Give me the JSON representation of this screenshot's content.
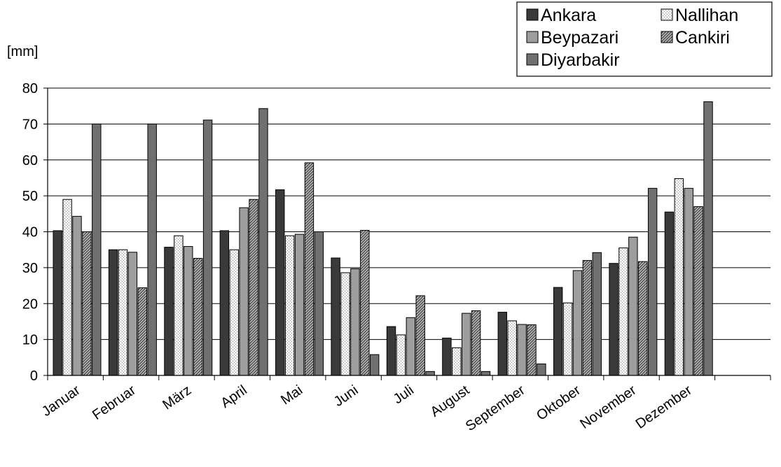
{
  "chart_data": {
    "type": "bar",
    "ylabel": "[mm]",
    "ylim": [
      0,
      80
    ],
    "yticks": [
      0,
      10,
      20,
      30,
      40,
      50,
      60,
      70,
      80
    ],
    "grid": "horizontal",
    "legend_position": "top-right",
    "categories": [
      "Januar",
      "Februar",
      "März",
      "April",
      "Mai",
      "Juni",
      "Juli",
      "August",
      "September",
      "Oktober",
      "November",
      "Dezember"
    ],
    "series": [
      {
        "name": "Ankara",
        "color": "#3a3a3a",
        "pattern": "solid-dark",
        "values": [
          40.3,
          35.0,
          35.7,
          40.3,
          51.7,
          32.7,
          13.6,
          10.4,
          17.6,
          24.5,
          31.2,
          45.5
        ]
      },
      {
        "name": "Nallihan",
        "color": "#e4e4e4",
        "pattern": "dotted-light",
        "values": [
          49.0,
          35.0,
          38.9,
          35.0,
          38.9,
          28.6,
          11.3,
          7.7,
          15.2,
          20.2,
          35.5,
          54.8
        ]
      },
      {
        "name": "Beypazari",
        "color": "#9e9e9e",
        "pattern": "solid-gray",
        "values": [
          44.3,
          34.3,
          35.9,
          46.7,
          39.3,
          29.7,
          16.1,
          17.3,
          14.2,
          29.2,
          38.5,
          52.1
        ]
      },
      {
        "name": "Cankiri",
        "color": "#8a8a8a",
        "pattern": "hatched",
        "values": [
          40.0,
          24.4,
          32.6,
          49.0,
          59.2,
          40.4,
          22.2,
          18.0,
          14.1,
          32.0,
          31.7,
          47.0
        ]
      },
      {
        "name": "Diyarbakir",
        "color": "#707070",
        "pattern": "solid-mid",
        "values": [
          70.0,
          70.0,
          71.1,
          74.3,
          40.0,
          5.8,
          1.1,
          1.1,
          3.2,
          34.2,
          52.1,
          76.2
        ]
      }
    ]
  }
}
